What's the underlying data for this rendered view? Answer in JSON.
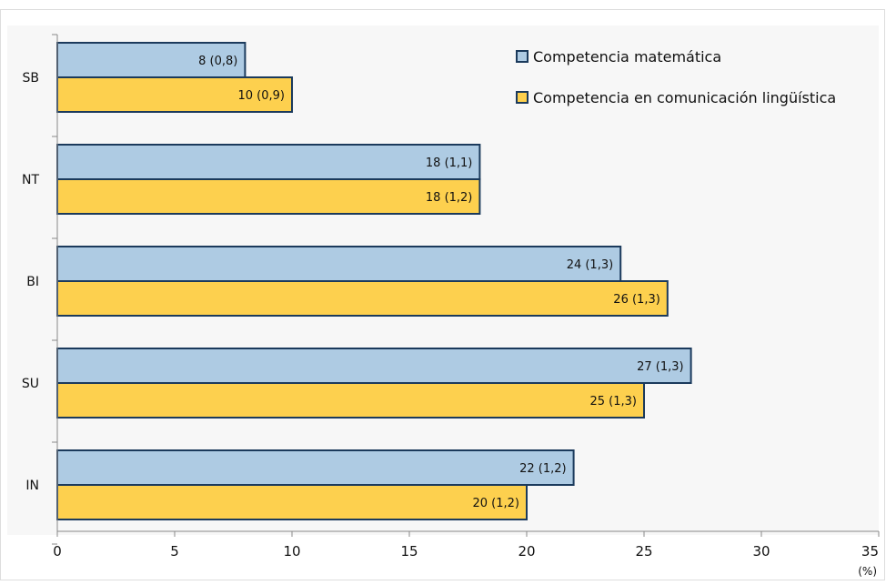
{
  "chart_data": {
    "type": "bar",
    "orientation": "horizontal",
    "categories": [
      "SB",
      "NT",
      "BI",
      "SU",
      "IN"
    ],
    "series": [
      {
        "name": "Competencia matemática",
        "values": [
          8,
          18,
          24,
          27,
          22
        ],
        "labels": [
          "8 (0,8)",
          "18 (1,1)",
          "24 (1,3)",
          "27 (1,3)",
          "22 (1,2)"
        ],
        "color": "#aecbe3"
      },
      {
        "name": "Competencia en comunicación lingüística",
        "values": [
          10,
          18,
          26,
          25,
          20
        ],
        "labels": [
          "10 (0,9)",
          "18 (1,2)",
          "26 (1,3)",
          "25 (1,3)",
          "20 (1,2)"
        ],
        "color": "#fdd04e"
      }
    ],
    "xticks": [
      "0",
      "5",
      "10",
      "15",
      "20",
      "25",
      "30",
      "35"
    ],
    "xlim": [
      0,
      35
    ],
    "xunit": "(%)",
    "grid": false,
    "legend_position": "top-right",
    "bar_outline_color": "#1b3a5c",
    "background_color": "#f7f7f7"
  }
}
